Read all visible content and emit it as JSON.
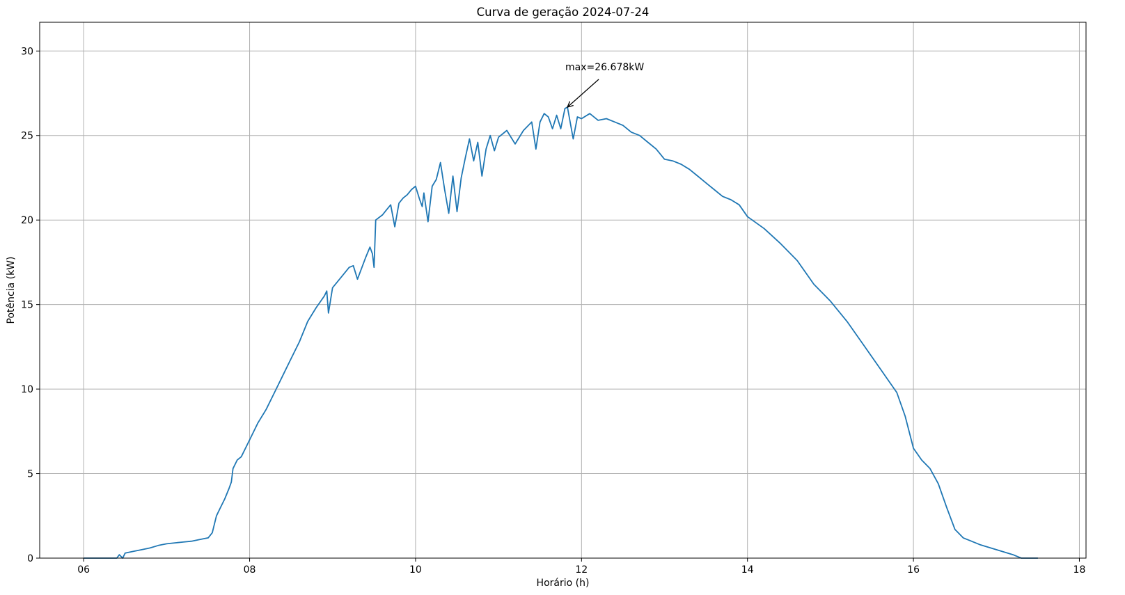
{
  "chart_data": {
    "type": "line",
    "title": "Curva de geração 2024-07-24",
    "xlabel": "Horário (h)",
    "ylabel": "Potência (kW)",
    "xlim": [
      5.47,
      18.08
    ],
    "ylim": [
      0,
      31.7
    ],
    "grid": true,
    "x_ticks": [
      6,
      8,
      10,
      12,
      14,
      16,
      18
    ],
    "x_tick_labels": [
      "06",
      "08",
      "10",
      "12",
      "14",
      "16",
      "18"
    ],
    "y_ticks": [
      0,
      5,
      10,
      15,
      20,
      25,
      30
    ],
    "y_tick_labels": [
      "0",
      "5",
      "10",
      "15",
      "20",
      "25",
      "30"
    ],
    "line_color": "#1f77b4",
    "annotation": {
      "text": "max=26.678kW",
      "x": 11.83,
      "y": 26.678
    },
    "series": [
      {
        "x": [
          6.0,
          6.1,
          6.2,
          6.3,
          6.4,
          6.43,
          6.47,
          6.5,
          6.6,
          6.7,
          6.8,
          6.9,
          7.0,
          7.1,
          7.2,
          7.3,
          7.4,
          7.5,
          7.55,
          7.6,
          7.65,
          7.7,
          7.75,
          7.78,
          7.8,
          7.85,
          7.9,
          8.0,
          8.1,
          8.2,
          8.3,
          8.4,
          8.5,
          8.6,
          8.7,
          8.8,
          8.9,
          8.93,
          8.95,
          9.0,
          9.1,
          9.2,
          9.25,
          9.3,
          9.4,
          9.45,
          9.48,
          9.5,
          9.52,
          9.6,
          9.65,
          9.7,
          9.75,
          9.8,
          9.85,
          9.9,
          9.95,
          10.0,
          10.05,
          10.08,
          10.1,
          10.15,
          10.2,
          10.25,
          10.3,
          10.35,
          10.4,
          10.45,
          10.5,
          10.55,
          10.6,
          10.65,
          10.7,
          10.75,
          10.8,
          10.85,
          10.9,
          10.95,
          11.0,
          11.1,
          11.2,
          11.3,
          11.4,
          11.45,
          11.5,
          11.55,
          11.6,
          11.65,
          11.7,
          11.75,
          11.8,
          11.83,
          11.9,
          11.95,
          12.0,
          12.1,
          12.2,
          12.3,
          12.4,
          12.5,
          12.6,
          12.7,
          12.8,
          12.9,
          13.0,
          13.1,
          13.2,
          13.3,
          13.4,
          13.5,
          13.6,
          13.7,
          13.8,
          13.9,
          14.0,
          14.2,
          14.4,
          14.6,
          14.8,
          15.0,
          15.2,
          15.4,
          15.6,
          15.8,
          15.9,
          16.0,
          16.1,
          16.2,
          16.3,
          16.4,
          16.5,
          16.6,
          16.7,
          16.8,
          17.0,
          17.2,
          17.25,
          17.3,
          17.5
        ],
        "y": [
          0.0,
          0.0,
          0.0,
          0.0,
          0.0,
          0.2,
          0.0,
          0.3,
          0.4,
          0.5,
          0.6,
          0.75,
          0.85,
          0.9,
          0.95,
          1.0,
          1.1,
          1.2,
          1.5,
          2.5,
          3.0,
          3.5,
          4.1,
          4.5,
          5.3,
          5.8,
          6.0,
          7.0,
          8.0,
          8.8,
          9.8,
          10.8,
          11.8,
          12.8,
          14.0,
          14.8,
          15.5,
          15.8,
          14.5,
          16.0,
          16.6,
          17.2,
          17.3,
          16.5,
          17.8,
          18.4,
          18.0,
          17.2,
          20.0,
          20.3,
          20.6,
          20.9,
          19.6,
          21.0,
          21.3,
          21.5,
          21.8,
          22.0,
          21.2,
          20.8,
          21.6,
          19.9,
          22.0,
          22.4,
          23.4,
          21.8,
          20.4,
          22.6,
          20.5,
          22.5,
          23.7,
          24.8,
          23.5,
          24.6,
          22.6,
          24.2,
          25.0,
          24.1,
          24.9,
          25.3,
          24.5,
          25.3,
          25.8,
          24.2,
          25.8,
          26.3,
          26.1,
          25.4,
          26.2,
          25.4,
          26.6,
          26.678,
          24.8,
          26.1,
          26.0,
          26.3,
          25.9,
          26.0,
          25.8,
          25.6,
          25.2,
          25.0,
          24.6,
          24.2,
          23.6,
          23.5,
          23.3,
          23.0,
          22.6,
          22.2,
          21.8,
          21.4,
          21.2,
          20.9,
          20.2,
          19.5,
          18.6,
          17.6,
          16.2,
          15.2,
          14.0,
          12.6,
          11.2,
          9.8,
          8.4,
          6.5,
          5.8,
          5.3,
          4.4,
          3.0,
          1.7,
          1.2,
          1.0,
          0.8,
          0.5,
          0.2,
          0.1,
          0.0,
          0.0
        ]
      }
    ]
  }
}
